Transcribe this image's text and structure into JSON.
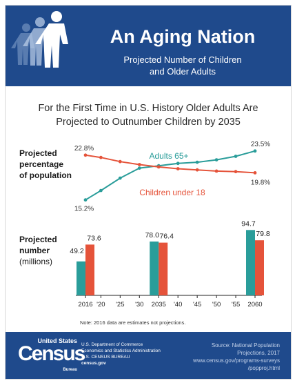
{
  "header": {
    "title": "An Aging Nation",
    "subtitle_line1": "Projected Number of Children",
    "subtitle_line2": "and Older Adults"
  },
  "headline": {
    "line1": "For the First Time in U.S. History Older Adults Are",
    "line2": "Projected to Outnumber Children by 2035"
  },
  "line_section_label": {
    "line1": "Projected",
    "line2": "percentage",
    "line3": "of population"
  },
  "bar_section_label": {
    "line1": "Projected",
    "line2": "number",
    "line3": "(millions)"
  },
  "colors": {
    "header_bg": "#1f4a8c",
    "adults": "#2a9d9a",
    "children": "#e5533a"
  },
  "chart_data": [
    {
      "type": "line",
      "x": [
        2016,
        2020,
        2025,
        2030,
        2035,
        2040,
        2045,
        2050,
        2055,
        2060
      ],
      "xlim": [
        2016,
        2060
      ],
      "ylim": [
        14,
        25
      ],
      "series": [
        {
          "name": "Adults 65+",
          "color": "#2a9d9a",
          "values": [
            15.2,
            16.8,
            18.9,
            20.6,
            21.0,
            21.4,
            21.6,
            22.0,
            22.6,
            23.5
          ],
          "start_label": "15.2%",
          "end_label": "23.5%"
        },
        {
          "name": "Children under 18",
          "color": "#e5533a",
          "values": [
            22.8,
            22.4,
            21.7,
            21.2,
            20.8,
            20.5,
            20.3,
            20.1,
            20.0,
            19.8
          ],
          "start_label": "22.8%",
          "end_label": "19.8%"
        }
      ]
    },
    {
      "type": "bar",
      "categories": [
        "2016",
        "2035",
        "2060"
      ],
      "ylim": [
        0,
        100
      ],
      "series": [
        {
          "name": "Adults 65+",
          "color": "#2a9d9a",
          "values": [
            49.2,
            78.0,
            94.7
          ],
          "labels": [
            "49.2",
            "78.0",
            "94.7"
          ]
        },
        {
          "name": "Children under 18",
          "color": "#e5533a",
          "values": [
            73.6,
            76.4,
            79.8
          ],
          "labels": [
            "73.6",
            "76.4",
            "79.8"
          ]
        }
      ],
      "axis_ticks": [
        "2016",
        "'20",
        "'25",
        "'30",
        "2035",
        "'40",
        "'45",
        "'50",
        "'55",
        "2060"
      ]
    }
  ],
  "note": "Note: 2016 data are estimates not projections.",
  "footer": {
    "logo_top": "United States",
    "logo_main": "Census",
    "logo_bottom": "Bureau",
    "org_line1": "U.S. Department of Commerce",
    "org_line2": "Economics and Statistics Administration",
    "org_line3": "U.S. CENSUS BUREAU",
    "org_line4": "census.gov",
    "source_line1": "Source: National Population",
    "source_line2": "Projections, 2017",
    "source_line3": "www.census.gov/programs-surveys",
    "source_line4": "/popproj.html"
  }
}
